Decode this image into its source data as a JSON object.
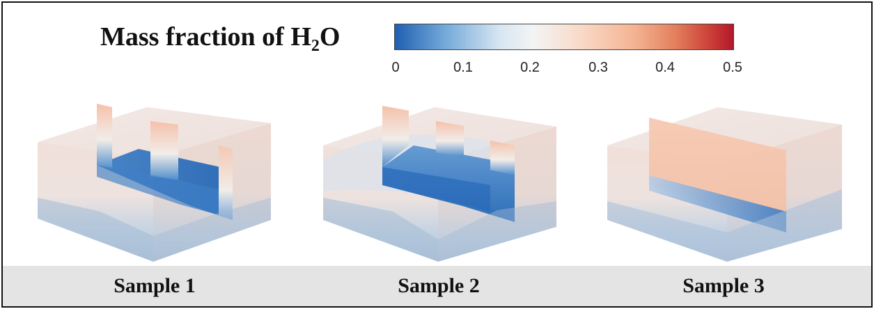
{
  "title": {
    "main": "Mass fraction of H",
    "subscript": "2",
    "tail": "O"
  },
  "colorbar": {
    "min": 0,
    "max": 0.5,
    "ticks": [
      "0",
      "0.1",
      "0.2",
      "0.3",
      "0.4",
      "0.5"
    ],
    "colors": [
      "#1f5fb0",
      "#f4f4f4",
      "#b2182b"
    ]
  },
  "samples": [
    {
      "label": "Sample 1"
    },
    {
      "label": "Sample 2"
    },
    {
      "label": "Sample 3"
    }
  ],
  "colors": {
    "frame": "#111111",
    "bottom_bar": "#e4e4e4"
  }
}
